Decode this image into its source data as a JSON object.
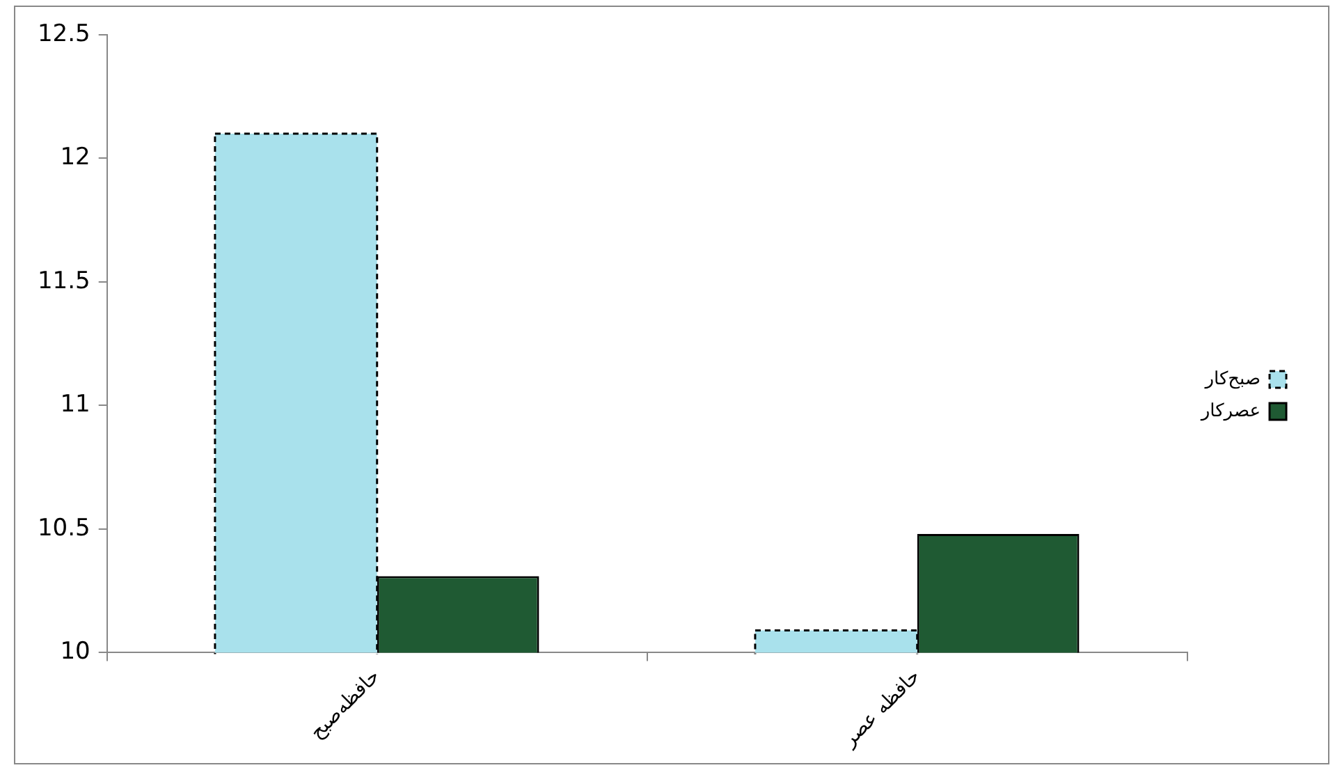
{
  "chart_data": {
    "type": "bar",
    "categories": [
      "حافظه‌صبح",
      "حافظه عصر"
    ],
    "series": [
      {
        "name": "صبح‌کار",
        "color": "#a9e1ec",
        "line_style": "dashed",
        "values": [
          12.1,
          10.09
        ]
      },
      {
        "name": "عصرکار",
        "color": "#1f5a33",
        "line_style": "solid",
        "values": [
          10.31,
          10.48
        ]
      }
    ],
    "ylim": [
      10,
      12.5
    ],
    "yticks": [
      10,
      10.5,
      11,
      11.5,
      12,
      12.5
    ],
    "grid": false,
    "legend": "right"
  }
}
